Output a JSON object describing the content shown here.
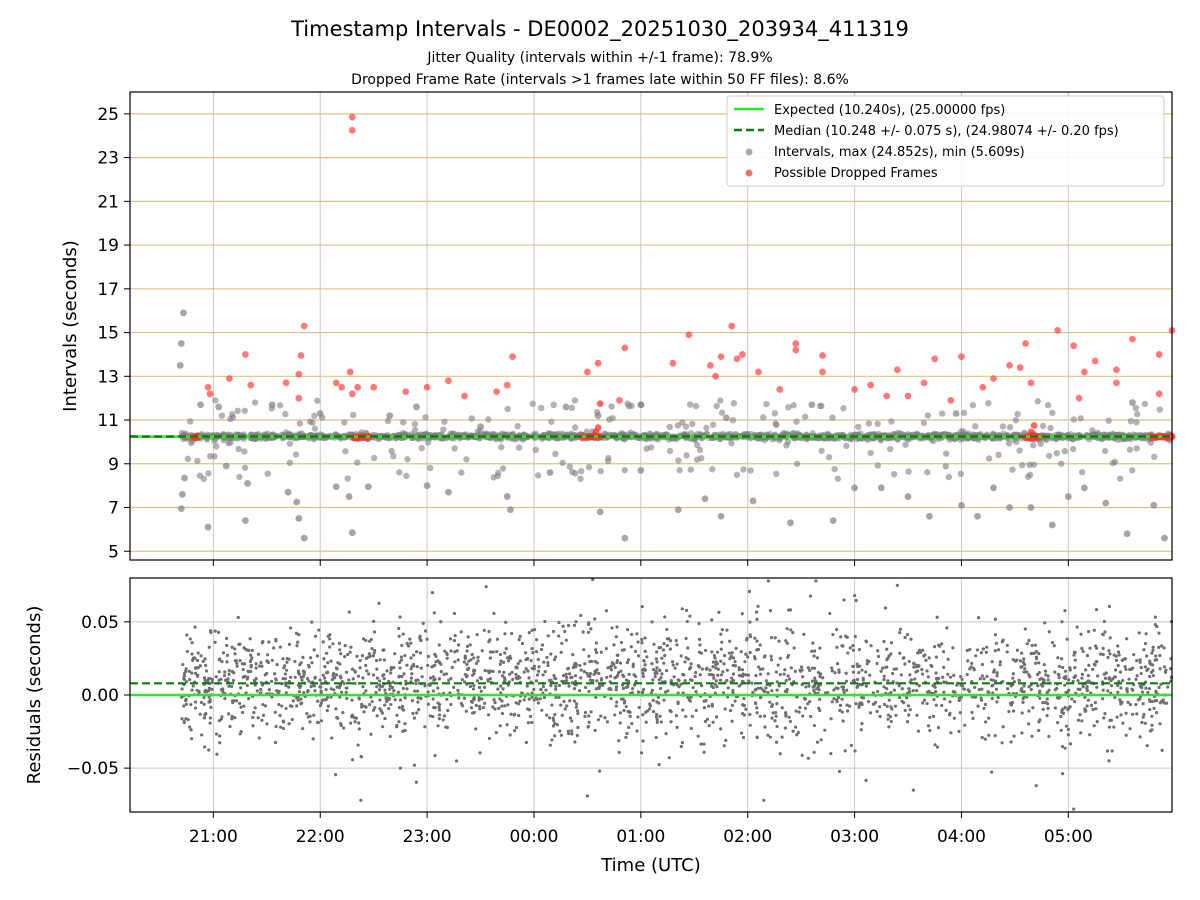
{
  "chart_data": [
    {
      "type": "scatter",
      "title": "Timestamp Intervals - DE0002_20251030_203934_411319",
      "subtitle_1": "Jitter Quality (intervals within +/-1 frame): 78.9%",
      "subtitle_2": "Dropped Frame Rate (intervals >1 frames late within 50 FF files): 8.6%",
      "ylabel": "Intervals (seconds)",
      "ylim": [
        4.6,
        26.0
      ],
      "yticks": [
        {
          "value": 5,
          "label": "5"
        },
        {
          "value": 7,
          "label": "7"
        },
        {
          "value": 9,
          "label": "9"
        },
        {
          "value": 11,
          "label": "11"
        },
        {
          "value": 13,
          "label": "13"
        },
        {
          "value": 15,
          "label": "15"
        },
        {
          "value": 17,
          "label": "17"
        },
        {
          "value": 19,
          "label": "19"
        },
        {
          "value": 21,
          "label": "21"
        },
        {
          "value": 23,
          "label": "23"
        },
        {
          "value": 25,
          "label": "25"
        }
      ],
      "expected_interval": 10.24,
      "median_interval": 10.248,
      "legend": {
        "position": "upper right",
        "entries": [
          {
            "label": "Expected (10.240s), (25.00000 fps)",
            "color": "#22ee22",
            "style": "solid-line"
          },
          {
            "label": "Median (10.248 +/- 0.075 s), (24.98074 +/- 0.20 fps)",
            "color": "#117a11",
            "style": "dashed-line"
          },
          {
            "label": "Intervals, max (24.852s), min (5.609s)",
            "color": "#808080",
            "style": "marker"
          },
          {
            "label": "Possible Dropped Frames",
            "color": "#ff3333",
            "style": "marker"
          }
        ]
      },
      "series": [
        {
          "name": "Intervals",
          "color": "#808080",
          "points": [
            {
              "t": 20.72,
              "v": 15.9
            },
            {
              "t": 20.7,
              "v": 14.5
            },
            {
              "t": 20.69,
              "v": 13.5
            },
            {
              "t": 20.73,
              "v": 8.35
            },
            {
              "t": 20.71,
              "v": 7.6
            },
            {
              "t": 20.7,
              "v": 6.95
            },
            {
              "t": 20.95,
              "v": 6.1
            },
            {
              "t": 20.88,
              "v": 11.7
            },
            {
              "t": 21.05,
              "v": 11.6
            },
            {
              "t": 21.12,
              "v": 8.9
            },
            {
              "t": 21.3,
              "v": 6.4
            },
            {
              "t": 21.32,
              "v": 8.1
            },
            {
              "t": 21.55,
              "v": 11.7
            },
            {
              "t": 21.7,
              "v": 7.7
            },
            {
              "t": 21.85,
              "v": 5.6
            },
            {
              "t": 21.8,
              "v": 6.5
            },
            {
              "t": 21.78,
              "v": 7.25
            },
            {
              "t": 22.0,
              "v": 11.3
            },
            {
              "t": 22.15,
              "v": 7.95
            },
            {
              "t": 22.3,
              "v": 5.85
            },
            {
              "t": 22.27,
              "v": 7.5
            },
            {
              "t": 22.45,
              "v": 7.95
            },
            {
              "t": 22.65,
              "v": 11.2
            },
            {
              "t": 22.9,
              "v": 11.6
            },
            {
              "t": 23.0,
              "v": 8.0
            },
            {
              "t": 23.2,
              "v": 7.7
            },
            {
              "t": 23.5,
              "v": 10.7
            },
            {
              "t": 23.75,
              "v": 7.5
            },
            {
              "t": 23.78,
              "v": 6.9
            },
            {
              "t": 24.15,
              "v": 8.6
            },
            {
              "t": 24.3,
              "v": 11.6
            },
            {
              "t": 24.6,
              "v": 11.2
            },
            {
              "t": 24.62,
              "v": 6.8
            },
            {
              "t": 24.85,
              "v": 5.6
            },
            {
              "t": 25.0,
              "v": 11.7
            },
            {
              "t": 25.0,
              "v": 8.7
            },
            {
              "t": 25.35,
              "v": 6.9
            },
            {
              "t": 25.6,
              "v": 7.4
            },
            {
              "t": 25.75,
              "v": 6.6
            },
            {
              "t": 25.8,
              "v": 11.1
            },
            {
              "t": 26.05,
              "v": 7.3
            },
            {
              "t": 26.4,
              "v": 6.3
            },
            {
              "t": 26.6,
              "v": 11.7
            },
            {
              "t": 26.8,
              "v": 6.4
            },
            {
              "t": 27.0,
              "v": 7.9
            },
            {
              "t": 27.25,
              "v": 7.9
            },
            {
              "t": 27.5,
              "v": 7.5
            },
            {
              "t": 27.7,
              "v": 6.6
            },
            {
              "t": 27.95,
              "v": 11.3
            },
            {
              "t": 28.0,
              "v": 7.1
            },
            {
              "t": 28.15,
              "v": 6.6
            },
            {
              "t": 28.3,
              "v": 7.9
            },
            {
              "t": 28.45,
              "v": 7.0
            },
            {
              "t": 28.65,
              "v": 7.0
            },
            {
              "t": 28.85,
              "v": 6.2
            },
            {
              "t": 29.0,
              "v": 7.5
            },
            {
              "t": 29.15,
              "v": 7.9
            },
            {
              "t": 29.35,
              "v": 7.2
            },
            {
              "t": 29.55,
              "v": 5.8
            },
            {
              "t": 29.8,
              "v": 7.1
            },
            {
              "t": 29.9,
              "v": 5.6
            },
            {
              "t": 29.6,
              "v": 11.8
            }
          ]
        },
        {
          "name": "Possible Dropped Frames",
          "color": "#ff3333",
          "points": [
            {
              "t": 22.3,
              "v": 24.85
            },
            {
              "t": 22.3,
              "v": 24.25
            },
            {
              "t": 20.95,
              "v": 12.5
            },
            {
              "t": 20.97,
              "v": 12.2
            },
            {
              "t": 21.15,
              "v": 12.9
            },
            {
              "t": 21.3,
              "v": 14.0
            },
            {
              "t": 21.35,
              "v": 12.6
            },
            {
              "t": 21.68,
              "v": 12.7
            },
            {
              "t": 21.8,
              "v": 13.1
            },
            {
              "t": 21.82,
              "v": 13.95
            },
            {
              "t": 21.85,
              "v": 15.3
            },
            {
              "t": 21.8,
              "v": 12.0
            },
            {
              "t": 22.15,
              "v": 12.7
            },
            {
              "t": 22.2,
              "v": 12.5
            },
            {
              "t": 22.28,
              "v": 13.2
            },
            {
              "t": 22.3,
              "v": 12.2
            },
            {
              "t": 22.35,
              "v": 12.5
            },
            {
              "t": 22.5,
              "v": 12.5
            },
            {
              "t": 22.8,
              "v": 12.3
            },
            {
              "t": 23.0,
              "v": 12.5
            },
            {
              "t": 23.2,
              "v": 12.8
            },
            {
              "t": 23.35,
              "v": 12.1
            },
            {
              "t": 23.65,
              "v": 12.3
            },
            {
              "t": 23.8,
              "v": 13.9
            },
            {
              "t": 23.75,
              "v": 12.6
            },
            {
              "t": 24.5,
              "v": 13.2
            },
            {
              "t": 24.6,
              "v": 13.6
            },
            {
              "t": 24.8,
              "v": 11.9
            },
            {
              "t": 24.85,
              "v": 14.3
            },
            {
              "t": 25.3,
              "v": 13.6
            },
            {
              "t": 25.45,
              "v": 14.9
            },
            {
              "t": 25.65,
              "v": 13.5
            },
            {
              "t": 25.7,
              "v": 13.0
            },
            {
              "t": 25.75,
              "v": 13.9
            },
            {
              "t": 25.85,
              "v": 15.3
            },
            {
              "t": 25.9,
              "v": 13.8
            },
            {
              "t": 25.95,
              "v": 14.0
            },
            {
              "t": 26.1,
              "v": 13.2
            },
            {
              "t": 26.3,
              "v": 12.4
            },
            {
              "t": 26.45,
              "v": 14.5
            },
            {
              "t": 26.45,
              "v": 14.2
            },
            {
              "t": 26.7,
              "v": 13.2
            },
            {
              "t": 26.7,
              "v": 13.95
            },
            {
              "t": 27.0,
              "v": 12.4
            },
            {
              "t": 27.15,
              "v": 12.6
            },
            {
              "t": 27.3,
              "v": 12.1
            },
            {
              "t": 27.4,
              "v": 13.3
            },
            {
              "t": 27.5,
              "v": 12.1
            },
            {
              "t": 27.65,
              "v": 12.7
            },
            {
              "t": 27.75,
              "v": 13.8
            },
            {
              "t": 27.9,
              "v": 11.9
            },
            {
              "t": 28.0,
              "v": 13.9
            },
            {
              "t": 28.2,
              "v": 12.5
            },
            {
              "t": 28.3,
              "v": 12.9
            },
            {
              "t": 28.45,
              "v": 13.5
            },
            {
              "t": 28.55,
              "v": 13.4
            },
            {
              "t": 28.6,
              "v": 14.5
            },
            {
              "t": 28.65,
              "v": 12.7
            },
            {
              "t": 28.9,
              "v": 15.1
            },
            {
              "t": 29.05,
              "v": 14.4
            },
            {
              "t": 29.1,
              "v": 12.0
            },
            {
              "t": 29.15,
              "v": 13.2
            },
            {
              "t": 29.25,
              "v": 13.7
            },
            {
              "t": 29.45,
              "v": 13.3
            },
            {
              "t": 29.45,
              "v": 12.7
            },
            {
              "t": 29.6,
              "v": 14.7
            },
            {
              "t": 29.85,
              "v": 14.0
            },
            {
              "t": 29.85,
              "v": 12.2
            },
            {
              "t": 29.97,
              "v": 15.1
            }
          ]
        }
      ]
    },
    {
      "type": "scatter",
      "ylabel": "Residuals (seconds)",
      "xlabel": "Time (UTC)",
      "ylim": [
        -0.08,
        0.08
      ],
      "yticks": [
        {
          "value": 0.05,
          "label": "0.05"
        },
        {
          "value": 0.0,
          "label": "0.00"
        },
        {
          "value": -0.05,
          "label": "−0.05"
        }
      ],
      "xlim": [
        20.22,
        29.97
      ],
      "xticks": [
        {
          "value": 21,
          "label": "21:00"
        },
        {
          "value": 22,
          "label": "22:00"
        },
        {
          "value": 23,
          "label": "23:00"
        },
        {
          "value": 24,
          "label": "00:00"
        },
        {
          "value": 25,
          "label": "01:00"
        },
        {
          "value": 26,
          "label": "02:00"
        },
        {
          "value": 27,
          "label": "03:00"
        },
        {
          "value": 28,
          "label": "04:00"
        },
        {
          "value": 29,
          "label": "05:00"
        }
      ],
      "expected_residual": 0.0,
      "median_residual": 0.008,
      "residual_spread": 0.02,
      "outliers": [
        {
          "t": 22.38,
          "v": -0.072
        },
        {
          "t": 23.05,
          "v": 0.07
        },
        {
          "t": 24.5,
          "v": -0.069
        },
        {
          "t": 27.0,
          "v": 0.068
        },
        {
          "t": 27.4,
          "v": 0.075
        },
        {
          "t": 27.55,
          "v": -0.065
        },
        {
          "t": 29.05,
          "v": -0.078
        },
        {
          "t": 26.15,
          "v": -0.072
        },
        {
          "t": 26.9,
          "v": 0.065
        },
        {
          "t": 24.55,
          "v": 0.079
        },
        {
          "t": 28.7,
          "v": -0.062
        },
        {
          "t": 22.75,
          "v": -0.05
        }
      ]
    }
  ]
}
